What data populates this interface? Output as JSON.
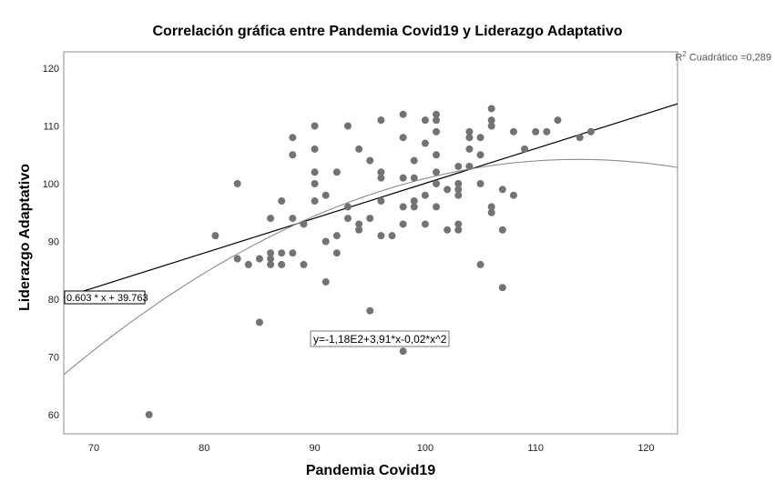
{
  "chart_data": {
    "type": "scatter",
    "title": "Correlación gráfica entre Pandemia Covid19 y Liderazgo Adaptativo",
    "xlabel": "Pandemia Covid19",
    "ylabel": "Liderazgo Adaptativo",
    "xlim": [
      67,
      123
    ],
    "ylim": [
      57,
      123
    ],
    "x_ticks": [
      70,
      80,
      90,
      100,
      110,
      120
    ],
    "y_ticks": [
      60,
      70,
      80,
      90,
      100,
      110,
      120
    ],
    "grid": false,
    "r2_label": "Cuadrático =0,289",
    "r2_prefix": "R",
    "r2_sup": "2",
    "linear_fit": {
      "label": "0.603 * x + 39.763",
      "slope": 0.603,
      "intercept": 39.763
    },
    "quadratic_fit": {
      "label": "y=-1,18E2+3,91*x-0,02*x^2",
      "a": -118.4,
      "b": 3.91,
      "c": -0.01717
    },
    "points": [
      [
        75,
        60
      ],
      [
        81,
        91
      ],
      [
        83,
        100
      ],
      [
        83,
        87
      ],
      [
        84,
        86
      ],
      [
        85,
        87
      ],
      [
        85,
        76
      ],
      [
        86,
        94
      ],
      [
        86,
        88
      ],
      [
        86,
        87
      ],
      [
        86,
        86
      ],
      [
        87,
        97
      ],
      [
        87,
        88
      ],
      [
        87,
        86
      ],
      [
        88,
        108
      ],
      [
        88,
        105
      ],
      [
        88,
        94
      ],
      [
        88,
        88
      ],
      [
        89,
        93
      ],
      [
        89,
        86
      ],
      [
        90,
        110
      ],
      [
        90,
        106
      ],
      [
        90,
        102
      ],
      [
        90,
        100
      ],
      [
        90,
        97
      ],
      [
        91,
        98
      ],
      [
        91,
        90
      ],
      [
        91,
        83
      ],
      [
        92,
        102
      ],
      [
        92,
        91
      ],
      [
        92,
        88
      ],
      [
        93,
        110
      ],
      [
        93,
        96
      ],
      [
        93,
        94
      ],
      [
        94,
        106
      ],
      [
        94,
        93
      ],
      [
        94,
        92
      ],
      [
        95,
        104
      ],
      [
        95,
        94
      ],
      [
        95,
        78
      ],
      [
        96,
        111
      ],
      [
        96,
        102
      ],
      [
        96,
        101
      ],
      [
        96,
        97
      ],
      [
        96,
        91
      ],
      [
        97,
        91
      ],
      [
        98,
        112
      ],
      [
        98,
        108
      ],
      [
        98,
        101
      ],
      [
        98,
        96
      ],
      [
        98,
        93
      ],
      [
        98,
        71
      ],
      [
        99,
        104
      ],
      [
        99,
        101
      ],
      [
        99,
        97
      ],
      [
        99,
        96
      ],
      [
        100,
        111
      ],
      [
        100,
        107
      ],
      [
        100,
        98
      ],
      [
        100,
        93
      ],
      [
        101,
        112
      ],
      [
        101,
        111
      ],
      [
        101,
        109
      ],
      [
        101,
        105
      ],
      [
        101,
        102
      ],
      [
        101,
        100
      ],
      [
        101,
        96
      ],
      [
        102,
        99
      ],
      [
        102,
        92
      ],
      [
        103,
        103
      ],
      [
        103,
        100
      ],
      [
        103,
        99
      ],
      [
        103,
        98
      ],
      [
        103,
        93
      ],
      [
        103,
        92
      ],
      [
        104,
        109
      ],
      [
        104,
        108
      ],
      [
        104,
        106
      ],
      [
        104,
        103
      ],
      [
        105,
        108
      ],
      [
        105,
        105
      ],
      [
        105,
        100
      ],
      [
        105,
        86
      ],
      [
        106,
        113
      ],
      [
        106,
        111
      ],
      [
        106,
        110
      ],
      [
        106,
        96
      ],
      [
        106,
        95
      ],
      [
        107,
        99
      ],
      [
        107,
        92
      ],
      [
        107,
        82
      ],
      [
        108,
        109
      ],
      [
        108,
        98
      ],
      [
        109,
        106
      ],
      [
        110,
        109
      ],
      [
        111,
        109
      ],
      [
        112,
        111
      ],
      [
        114,
        108
      ],
      [
        115,
        109
      ]
    ],
    "colors": {
      "points": "#737373",
      "linear": "#000000",
      "quadratic": "#8c8c8c",
      "axis": "#8c8c8c"
    }
  }
}
